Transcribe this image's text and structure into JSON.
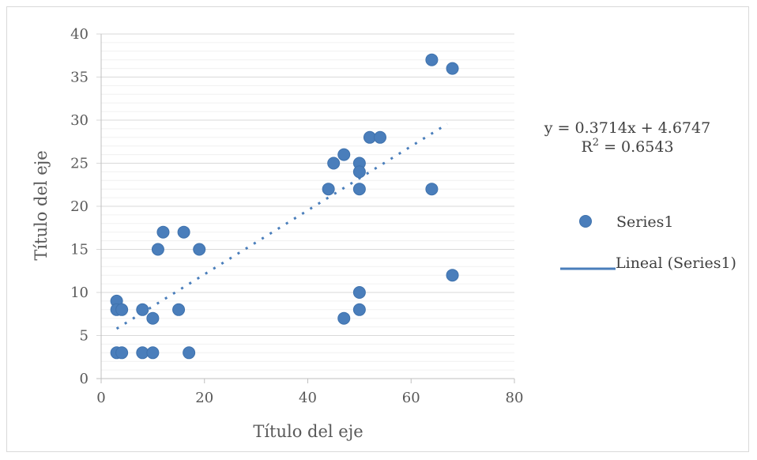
{
  "chart_data": {
    "type": "scatter",
    "xlabel": "Título del eje",
    "ylabel": "Título del eje",
    "xlim": [
      0,
      80
    ],
    "ylim": [
      0,
      40
    ],
    "xticks": [
      "0",
      "20",
      "40",
      "60",
      "80"
    ],
    "yticks": [
      "0",
      "5",
      "10",
      "15",
      "20",
      "25",
      "30",
      "35",
      "40"
    ],
    "grid": {
      "major_y": true,
      "minor_y": true,
      "x": false
    },
    "legend_position": "right",
    "series": [
      {
        "name": "Series1",
        "color": "#4a7ebb",
        "points": [
          {
            "x": 3,
            "y": 3
          },
          {
            "x": 4,
            "y": 3
          },
          {
            "x": 8,
            "y": 3
          },
          {
            "x": 10,
            "y": 3
          },
          {
            "x": 17,
            "y": 3
          },
          {
            "x": 3,
            "y": 9
          },
          {
            "x": 3,
            "y": 8
          },
          {
            "x": 4,
            "y": 8
          },
          {
            "x": 8,
            "y": 8
          },
          {
            "x": 10,
            "y": 7
          },
          {
            "x": 15,
            "y": 8
          },
          {
            "x": 11,
            "y": 15
          },
          {
            "x": 12,
            "y": 17
          },
          {
            "x": 16,
            "y": 17
          },
          {
            "x": 19,
            "y": 15
          },
          {
            "x": 44,
            "y": 22
          },
          {
            "x": 45,
            "y": 25
          },
          {
            "x": 47,
            "y": 26
          },
          {
            "x": 50,
            "y": 25
          },
          {
            "x": 50,
            "y": 24
          },
          {
            "x": 50,
            "y": 22
          },
          {
            "x": 52,
            "y": 28
          },
          {
            "x": 54,
            "y": 28
          },
          {
            "x": 64,
            "y": 37
          },
          {
            "x": 68,
            "y": 36
          },
          {
            "x": 64,
            "y": 22
          },
          {
            "x": 68,
            "y": 12
          },
          {
            "x": 47,
            "y": 7
          },
          {
            "x": 50,
            "y": 8
          },
          {
            "x": 50,
            "y": 10
          }
        ]
      }
    ],
    "trendline": {
      "name": "Lineal (Series1)",
      "type": "linear",
      "slope": 0.3714,
      "intercept": 4.6747,
      "x_range": [
        3,
        67
      ],
      "color": "#4a7ebb",
      "equation_text": "y = 0.3714x + 4.6747",
      "r2_prefix": "R",
      "r2_superscript": "2",
      "r2_value_text": " = 0.6543"
    },
    "legend": [
      {
        "label": "Series1",
        "marker": "circle"
      },
      {
        "label": "Lineal (Series1)",
        "marker": "line"
      }
    ]
  }
}
